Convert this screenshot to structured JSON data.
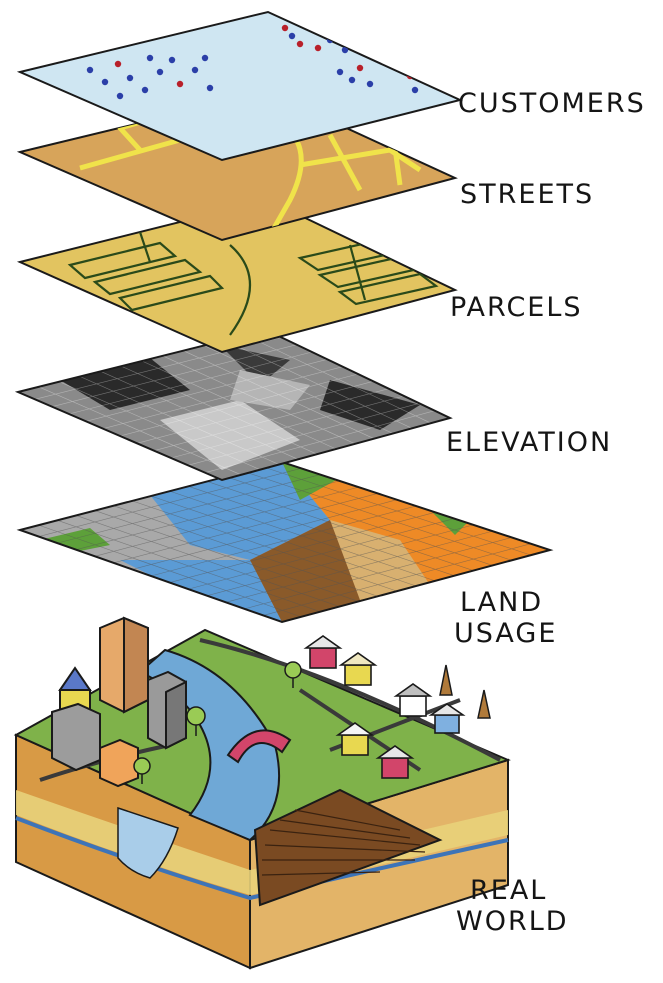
{
  "layers": [
    {
      "id": "customers",
      "label": "CUSTOMERS"
    },
    {
      "id": "streets",
      "label": "STREETS"
    },
    {
      "id": "parcels",
      "label": "PARCELS"
    },
    {
      "id": "elevation",
      "label": "ELEVATION"
    },
    {
      "id": "land_usage",
      "label_line1": "LAND",
      "label_line2": "USAGE"
    },
    {
      "id": "real_world",
      "label_line1": "REAL",
      "label_line2": "WORLD"
    }
  ],
  "colors": {
    "outline": "#1a1a1a",
    "customers_fill": "#cfe6f2",
    "customer_dot_blue": "#2b3fa8",
    "customer_dot_red": "#b8202a",
    "streets_fill": "#d7a45a",
    "street_line": "#f0e34a",
    "parcels_fill": "#e2c460",
    "parcel_line": "#2a4a1a",
    "elevation_dark": "#2a2a2a",
    "elevation_light": "#c9c9c9",
    "land_gray": "#a9a9a9",
    "land_blue": "#5b9bd5",
    "land_green": "#5da03a",
    "land_orange": "#ee8a26",
    "land_brown": "#8a5a2a",
    "land_tan": "#d8b070",
    "grass": "#7fb24a",
    "river": "#6fa8d6",
    "soil": "#c2822e",
    "sand": "#e8d27a"
  }
}
